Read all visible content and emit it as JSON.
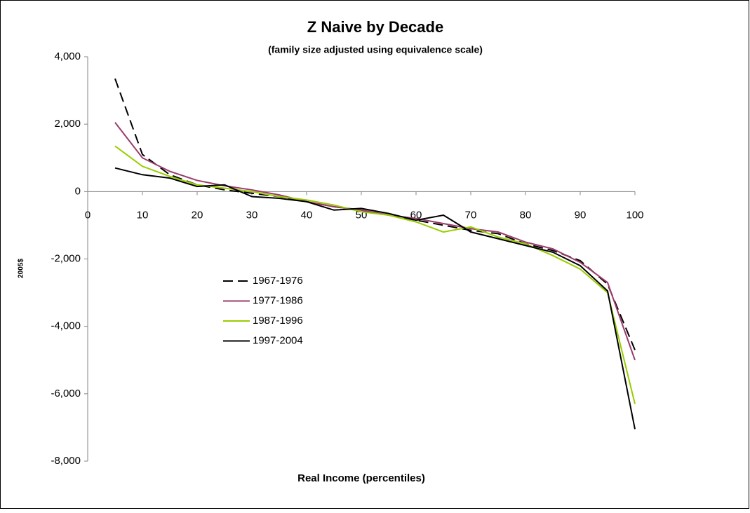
{
  "chart_data": {
    "type": "line",
    "title": "Z Naive by Decade",
    "subtitle": "(family size adjusted using equivalence scale)",
    "x_label": "Real Income (percentiles)",
    "y_label": "2005$",
    "x": [
      5,
      10,
      15,
      20,
      25,
      30,
      35,
      40,
      45,
      50,
      55,
      60,
      65,
      70,
      75,
      80,
      85,
      90,
      95,
      100
    ],
    "series": [
      {
        "name": "1967-1976",
        "color": "#000000",
        "dashed": true,
        "values": [
          3350,
          1100,
          500,
          200,
          50,
          -50,
          -150,
          -300,
          -450,
          -550,
          -700,
          -850,
          -1000,
          -1150,
          -1250,
          -1550,
          -1750,
          -2050,
          -2750,
          -4700
        ]
      },
      {
        "name": "1977-1986",
        "color": "#9b3b6b",
        "dashed": false,
        "values": [
          2050,
          1000,
          600,
          330,
          170,
          50,
          -100,
          -300,
          -450,
          -550,
          -700,
          -800,
          -950,
          -1100,
          -1200,
          -1500,
          -1700,
          -2100,
          -2700,
          -5000
        ]
      },
      {
        "name": "1987-1996",
        "color": "#99cc00",
        "dashed": false,
        "values": [
          1350,
          750,
          450,
          200,
          100,
          0,
          -150,
          -250,
          -400,
          -600,
          -700,
          -900,
          -1200,
          -1050,
          -1350,
          -1550,
          -1900,
          -2300,
          -3000,
          -6300
        ]
      },
      {
        "name": "1997-2004",
        "color": "#000000",
        "dashed": false,
        "values": [
          700,
          500,
          400,
          150,
          200,
          -150,
          -200,
          -300,
          -550,
          -500,
          -650,
          -850,
          -700,
          -1200,
          -1400,
          -1600,
          -1800,
          -2200,
          -2950,
          -7050
        ]
      }
    ],
    "xlim": [
      0,
      100
    ],
    "xticks": [
      0,
      10,
      20,
      30,
      40,
      50,
      60,
      70,
      80,
      90,
      100
    ],
    "ylim": [
      -8000,
      4000
    ],
    "yticks": [
      {
        "value": -8000,
        "label": "-8,000"
      },
      {
        "value": -6000,
        "label": "-6,000"
      },
      {
        "value": -4000,
        "label": "-4,000"
      },
      {
        "value": -2000,
        "label": "-2,000"
      },
      {
        "value": 0,
        "label": "0"
      },
      {
        "value": 2000,
        "label": "2,000"
      },
      {
        "value": 4000,
        "label": "4,000"
      }
    ]
  }
}
